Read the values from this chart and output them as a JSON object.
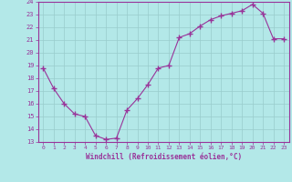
{
  "x": [
    0,
    1,
    2,
    3,
    4,
    5,
    6,
    7,
    8,
    9,
    10,
    11,
    12,
    13,
    14,
    15,
    16,
    17,
    18,
    19,
    20,
    21,
    22,
    23
  ],
  "y": [
    18.8,
    17.2,
    16.0,
    15.2,
    15.0,
    13.5,
    13.2,
    13.3,
    15.5,
    16.4,
    17.5,
    18.8,
    19.0,
    21.2,
    21.5,
    22.1,
    22.6,
    22.9,
    23.1,
    23.3,
    23.8,
    23.1,
    21.1,
    21.1
  ],
  "line_color": "#993399",
  "marker": "+",
  "marker_size": 4,
  "bg_color": "#b3e8e8",
  "grid_color": "#99cccc",
  "ylim": [
    13,
    24
  ],
  "yticks": [
    13,
    14,
    15,
    16,
    17,
    18,
    19,
    20,
    21,
    22,
    23,
    24
  ],
  "xlabel": "Windchill (Refroidissement éolien,°C)",
  "xlabel_color": "#993399",
  "tick_color": "#993399",
  "axis_color": "#993399",
  "spine_color": "#993399"
}
